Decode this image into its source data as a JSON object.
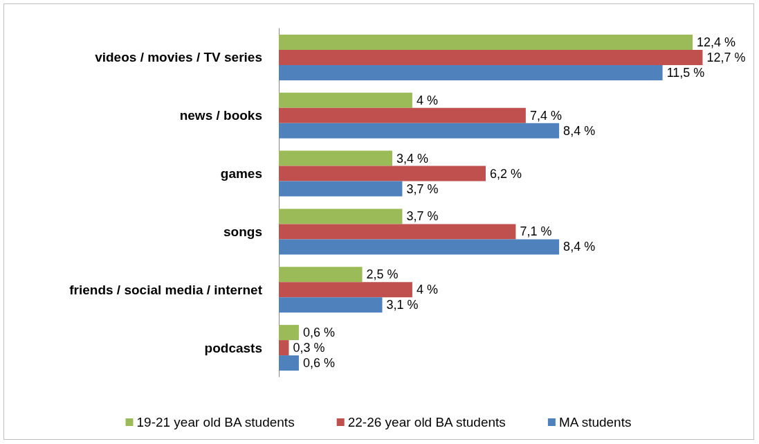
{
  "chart_data": {
    "type": "bar",
    "orientation": "horizontal",
    "categories": [
      "videos / movies / TV series",
      "news / books",
      "games",
      "songs",
      "friends / social media / internet",
      "podcasts"
    ],
    "series": [
      {
        "name": "19-21 year old BA students",
        "color": "#9bbb59",
        "values": [
          12.4,
          4,
          3.4,
          3.7,
          2.5,
          0.6
        ],
        "value_labels": [
          "12,4 %",
          "4 %",
          "3,4 %",
          "3,7 %",
          "2,5 %",
          "0,6 %"
        ]
      },
      {
        "name": "22-26 year old BA students",
        "color": "#c0504d",
        "values": [
          12.7,
          7.4,
          6.2,
          7.1,
          4,
          0.3
        ],
        "value_labels": [
          "12,7 %",
          "7,4 %",
          "6,2 %",
          "7,1 %",
          "4 %",
          "0,3 %"
        ]
      },
      {
        "name": "MA students",
        "color": "#4f81bd",
        "values": [
          11.5,
          8.4,
          3.7,
          8.4,
          3.1,
          0.6
        ],
        "value_labels": [
          "11,5 %",
          "8,4 %",
          "3,7 %",
          "8,4 %",
          "3,1 %",
          "0,6 %"
        ]
      }
    ],
    "legend": "bottom",
    "grid": false
  }
}
